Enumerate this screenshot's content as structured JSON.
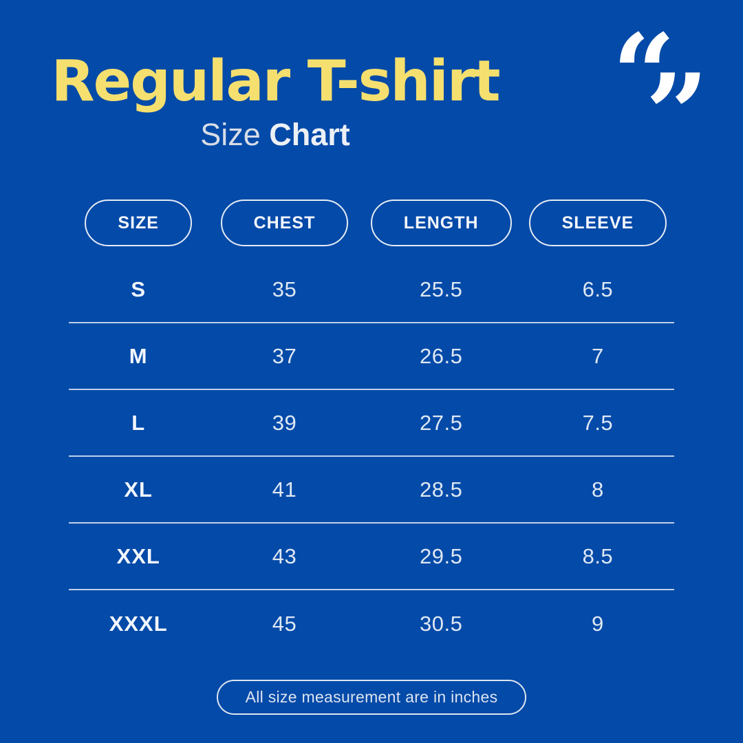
{
  "page": {
    "background_color": "#044aa8",
    "accent_yellow": "#f5df6e",
    "text_light": "#dfe8f4"
  },
  "header": {
    "title": "Regular T-shirt",
    "subtitle_regular": "Size",
    "subtitle_bold": "Chart",
    "quote_open_glyph": "“",
    "quote_close_glyph": "”"
  },
  "chart_data": {
    "type": "table",
    "title": "Regular T-shirt Size Chart",
    "columns": [
      "SIZE",
      "CHEST",
      "LENGTH",
      "SLEEVE"
    ],
    "units": "inches",
    "rows": [
      {
        "size": "S",
        "chest": "35",
        "length": "25.5",
        "sleeve": "6.5"
      },
      {
        "size": "M",
        "chest": "37",
        "length": "26.5",
        "sleeve": "7"
      },
      {
        "size": "L",
        "chest": "39",
        "length": "27.5",
        "sleeve": "7.5"
      },
      {
        "size": "XL",
        "chest": "41",
        "length": "28.5",
        "sleeve": "8"
      },
      {
        "size": "XXL",
        "chest": "43",
        "length": "29.5",
        "sleeve": "8.5"
      },
      {
        "size": "XXXL",
        "chest": "45",
        "length": "30.5",
        "sleeve": "9"
      }
    ]
  },
  "footer": {
    "note": "All size measurement are in inches"
  }
}
